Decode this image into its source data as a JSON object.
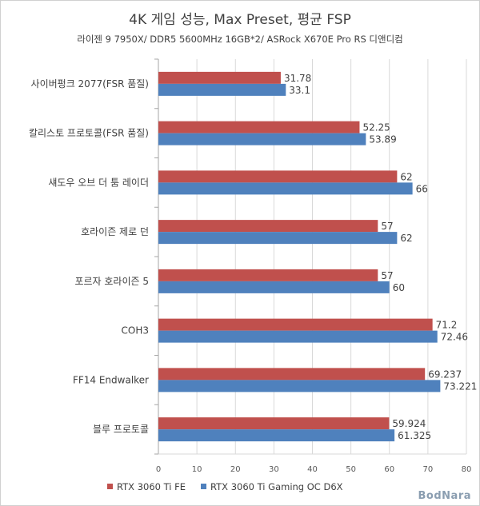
{
  "chart_data": {
    "type": "bar",
    "orientation": "horizontal",
    "title": "4K 게임 성능, Max Preset, 평균 FSP",
    "subtitle": "라이젠 9 7950X/ DDR5 5600MHz 16GB*2/ ASRock X670E Pro RS 디앤디컴",
    "categories": [
      "사이버펑크 2077(FSR 품질)",
      "칼리스토 프로토콜(FSR 품질)",
      "섀도우 오브 더 툼 레이더",
      "호라이즌 제로 던",
      "포르자 호라이즌 5",
      "COH3",
      "FF14 Endwalker",
      "블루 프로토콜"
    ],
    "series": [
      {
        "name": "RTX 3060 Ti FE",
        "color": "#c0504d",
        "values": [
          31.78,
          52.25,
          62,
          57,
          57,
          71.2,
          69.237,
          59.924
        ],
        "labels": [
          "31.78",
          "52.25",
          "62",
          "57",
          "57",
          "71.2",
          "69.237",
          "59.924"
        ]
      },
      {
        "name": "RTX 3060 Ti Gaming OC D6X",
        "color": "#4f81bd",
        "values": [
          33.1,
          53.89,
          66,
          62,
          60,
          72.46,
          73.221,
          61.325
        ],
        "labels": [
          "33.1",
          "53.89",
          "66",
          "62",
          "60",
          "72.46",
          "73.221",
          "61.325"
        ]
      }
    ],
    "xlim": [
      0,
      80
    ],
    "xticks": [
      "0",
      "10",
      "20",
      "30",
      "40",
      "50",
      "60",
      "70",
      "80"
    ],
    "legend_position": "bottom",
    "grid": true
  },
  "watermark": "BodNara"
}
